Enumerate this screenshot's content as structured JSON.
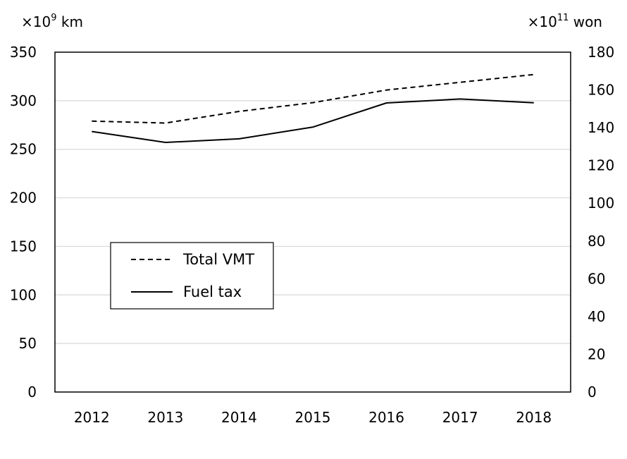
{
  "chart_data": {
    "type": "line",
    "title": "",
    "x": [
      "2012",
      "2013",
      "2014",
      "2015",
      "2016",
      "2017",
      "2018"
    ],
    "left_axis": {
      "unit_prefix": "×10",
      "unit_exp": "9",
      "unit_suffix": " km",
      "ylim": [
        0,
        350
      ],
      "ticks": [
        "0",
        "50",
        "100",
        "150",
        "200",
        "250",
        "300",
        "350"
      ]
    },
    "right_axis": {
      "unit_prefix": "×10",
      "unit_exp": "11",
      "unit_suffix": " won",
      "ylim": [
        0,
        180
      ],
      "ticks": [
        "0",
        "20",
        "40",
        "60",
        "80",
        "100",
        "120",
        "140",
        "160",
        "180"
      ]
    },
    "grid": "horizontal",
    "legend_position": "center-left",
    "series": [
      {
        "name": "Total VMT",
        "axis": "left",
        "style": "dashed",
        "values": [
          279,
          277,
          289,
          298,
          311,
          319,
          327
        ]
      },
      {
        "name": "Fuel tax",
        "axis": "right",
        "style": "solid",
        "values": [
          138.0,
          132.2,
          134.1,
          140.3,
          153.1,
          155.2,
          153.2
        ]
      }
    ]
  }
}
